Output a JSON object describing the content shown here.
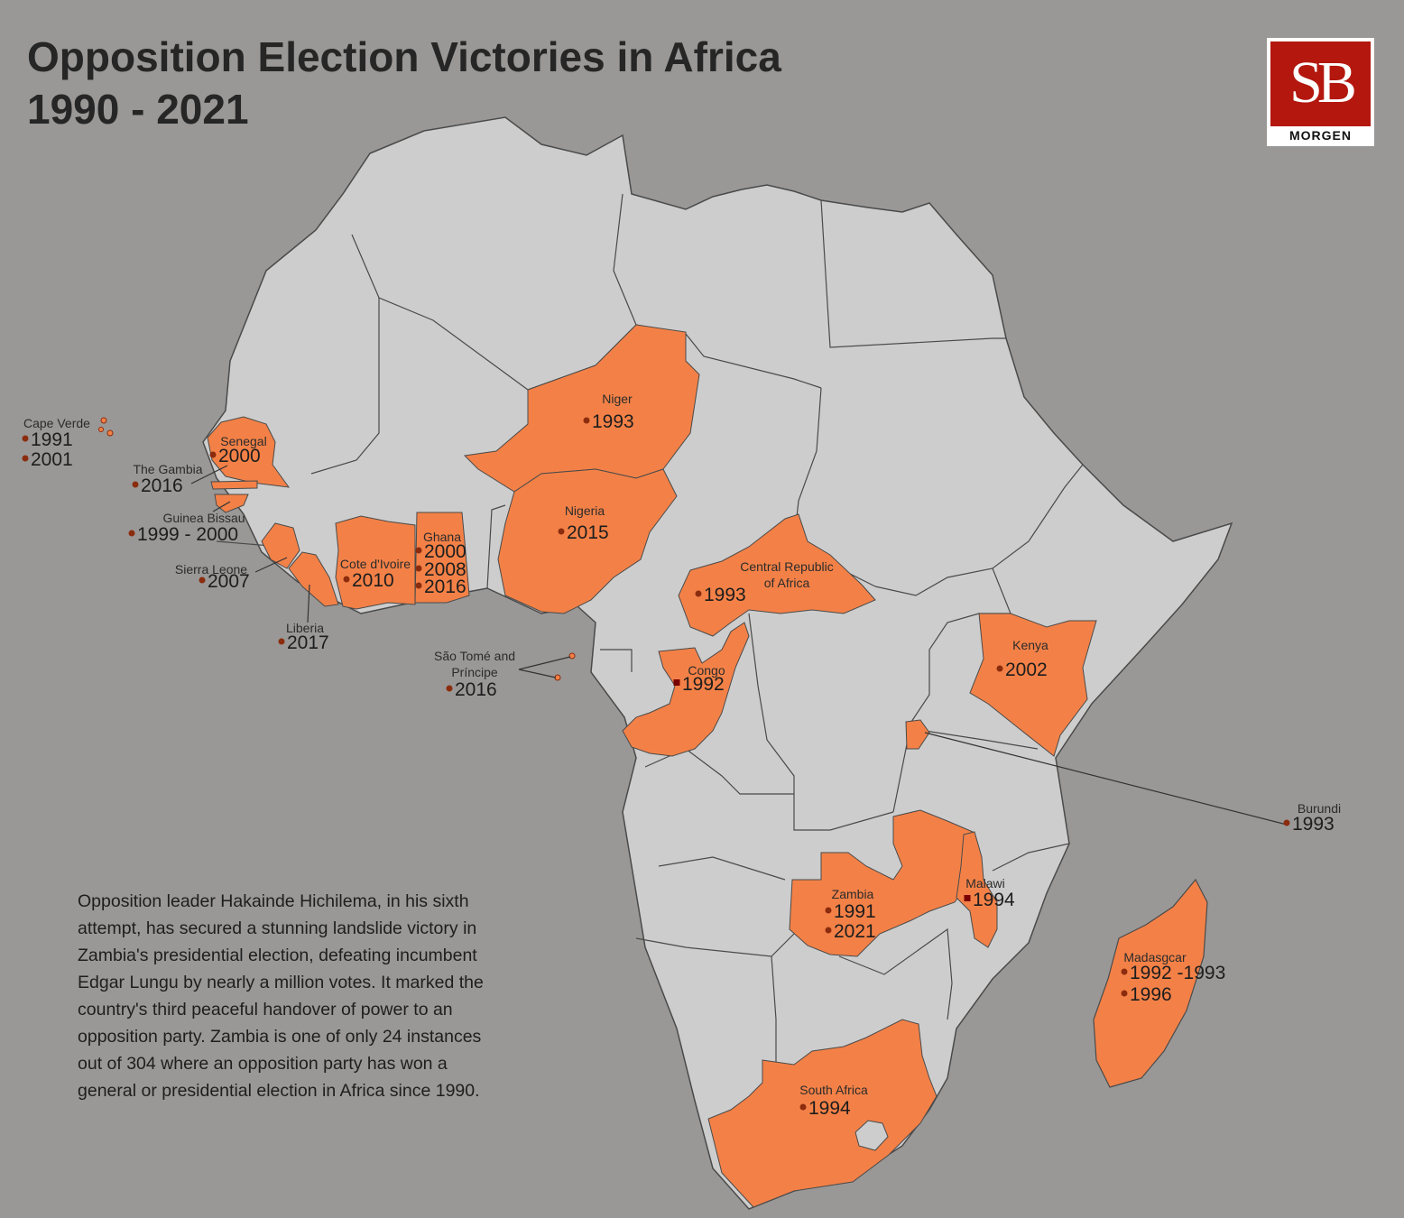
{
  "title": {
    "line1": "Opposition Election Victories in Africa",
    "line2": "1990 - 2021"
  },
  "logo": {
    "mark": "SB",
    "text": "MORGEN"
  },
  "colors": {
    "background": "#999897",
    "land": "#cdcdcd",
    "highlight": "#f38147",
    "border": "#4a4a4a",
    "dot": "#8b2c0e"
  },
  "note": "Opposition leader Hakainde Hichilema, in his sixth attempt, has secured a stunning landslide victory in Zambia's presidential election, defeating incumbent Edgar Lungu by nearly a million votes. It marked the country's third peaceful handover of power to an opposition party. Zambia is one of only 24 instances out of 304 where an opposition party has won a general or presidential election in Africa since 1990.",
  "countries": [
    {
      "id": "cape-verde",
      "name": "Cape Verde",
      "years": [
        "1991",
        "2001"
      ]
    },
    {
      "id": "senegal",
      "name": "Senegal",
      "years": [
        "2000"
      ]
    },
    {
      "id": "gambia",
      "name": "The Gambia",
      "years": [
        "2016"
      ]
    },
    {
      "id": "guinea-bissau",
      "name": "Guinea Bissau",
      "years": [
        "1999 - 2000"
      ]
    },
    {
      "id": "sierra-leone",
      "name": "Sierra Leone",
      "years": [
        "2007"
      ]
    },
    {
      "id": "liberia",
      "name": "Liberia",
      "years": [
        "2017"
      ]
    },
    {
      "id": "cote-divoire",
      "name": "Cote d'Ivoire",
      "years": [
        "2010"
      ]
    },
    {
      "id": "ghana",
      "name": "Ghana",
      "years": [
        "2000",
        "2008",
        "2016"
      ]
    },
    {
      "id": "niger",
      "name": "Niger",
      "years": [
        "1993"
      ]
    },
    {
      "id": "nigeria",
      "name": "Nigeria",
      "years": [
        "2015"
      ]
    },
    {
      "id": "car",
      "name": "Central Republic of Africa",
      "name_lines": [
        "Central Republic",
        "of Africa"
      ],
      "years": [
        "1993"
      ]
    },
    {
      "id": "sao-tome",
      "name": "São Tomé and Príncipe",
      "name_lines": [
        "São Tomé and",
        "Príncipe"
      ],
      "years": [
        "2016"
      ]
    },
    {
      "id": "congo",
      "name": "Congo",
      "years": [
        "1992"
      ]
    },
    {
      "id": "kenya",
      "name": "Kenya",
      "years": [
        "2002"
      ]
    },
    {
      "id": "burundi",
      "name": "Burundi",
      "years": [
        "1993"
      ]
    },
    {
      "id": "zambia",
      "name": "Zambia",
      "years": [
        "1991",
        "2021"
      ]
    },
    {
      "id": "malawi",
      "name": "Malawi",
      "years": [
        "1994"
      ]
    },
    {
      "id": "madagascar",
      "name": "Madasgcar",
      "years": [
        "1992 -1993",
        "1996"
      ]
    },
    {
      "id": "south-africa",
      "name": "South Africa",
      "years": [
        "1994"
      ]
    }
  ]
}
